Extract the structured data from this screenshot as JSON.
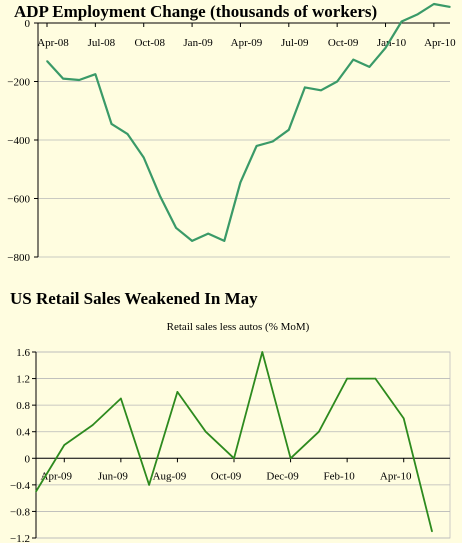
{
  "chart_data": [
    {
      "type": "line",
      "title": "ADP Employment Change (thousands of workers)",
      "color": "#3a9a68",
      "x_tick_labels": [
        "Apr-08",
        "Jul-08",
        "Oct-08",
        "Jan-09",
        "Apr-09",
        "Jul-09",
        "Oct-09",
        "Jan-10",
        "Apr-10"
      ],
      "y_ticks": [
        0,
        -200,
        -400,
        -600,
        -800
      ],
      "ylim": [
        -800,
        0
      ],
      "x": [
        "Apr-08",
        "May-08",
        "Jun-08",
        "Jul-08",
        "Aug-08",
        "Sep-08",
        "Oct-08",
        "Nov-08",
        "Dec-08",
        "Jan-09",
        "Feb-09",
        "Mar-09",
        "Apr-09",
        "May-09",
        "Jun-09",
        "Jul-09",
        "Aug-09",
        "Sep-09",
        "Oct-09",
        "Nov-09",
        "Dec-09",
        "Jan-10",
        "Feb-10",
        "Mar-10",
        "Apr-10",
        "May-10"
      ],
      "values": [
        -130,
        -190,
        -195,
        -175,
        -345,
        -380,
        -460,
        -590,
        -700,
        -745,
        -720,
        -745,
        -545,
        -420,
        -405,
        -365,
        -220,
        -230,
        -200,
        -125,
        -150,
        -85,
        5,
        30,
        65,
        55
      ],
      "grid": true
    },
    {
      "type": "line",
      "title": "US Retail Sales Weakened In May",
      "subtitle": "Retail sales less autos (% MoM)",
      "color": "#2d8a1e",
      "x_tick_labels": [
        "Apr-09",
        "Jun-09",
        "Aug-09",
        "Oct-09",
        "Dec-09",
        "Feb-10",
        "Apr-10"
      ],
      "y_ticks": [
        1.6,
        1.2,
        0.8,
        0.4,
        0,
        -0.4,
        -0.8,
        -1.2
      ],
      "ylim": [
        -1.2,
        1.6
      ],
      "x": [
        "Mar-09",
        "Apr-09",
        "May-09",
        "Jun-09",
        "Jul-09",
        "Aug-09",
        "Sep-09",
        "Oct-09",
        "Nov-09",
        "Dec-09",
        "Jan-10",
        "Feb-10",
        "Mar-10",
        "Apr-10",
        "May-10"
      ],
      "values": [
        -0.5,
        0.2,
        0.5,
        0.9,
        -0.4,
        1.0,
        0.4,
        0.0,
        1.6,
        0.0,
        0.4,
        1.2,
        1.2,
        0.6,
        -1.1
      ],
      "grid": true
    }
  ]
}
